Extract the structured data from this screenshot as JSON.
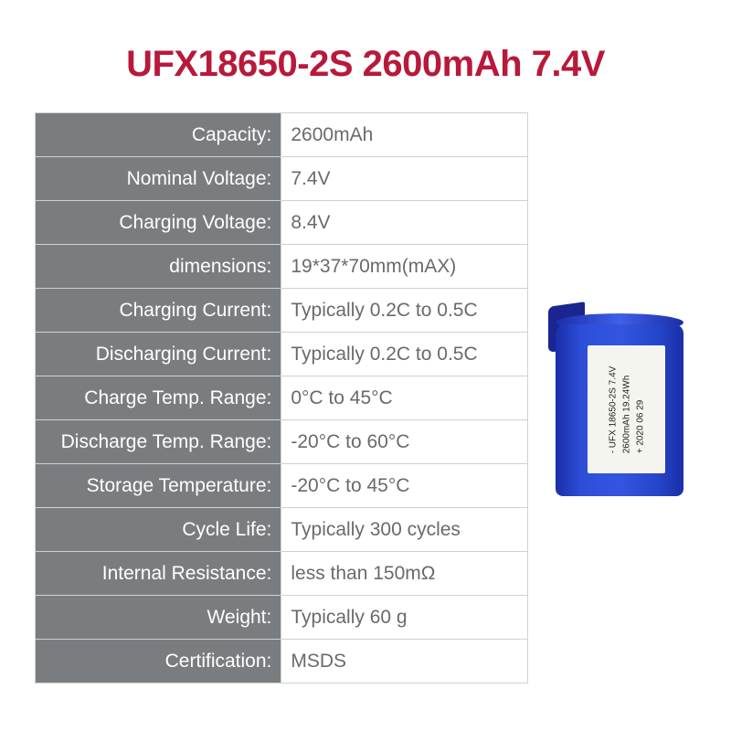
{
  "title": {
    "text": "UFX18650-2S 2600mAh 7.4V",
    "color": "#b8193a"
  },
  "table": {
    "label_bg": "#7a7d80",
    "label_color": "#ffffff",
    "value_color": "#6a6a6a",
    "border_color": "#d0d0d0",
    "rows": [
      {
        "label": "Capacity:",
        "value": "2600mAh"
      },
      {
        "label": "Nominal Voltage:",
        "value": "7.4V"
      },
      {
        "label": "Charging Voltage:",
        "value": "8.4V"
      },
      {
        "label": "dimensions:",
        "value": "19*37*70mm(mAX)"
      },
      {
        "label": "Charging Current:",
        "value": "Typically 0.2C to 0.5C"
      },
      {
        "label": "Discharging Current:",
        "value": "Typically 0.2C to 0.5C"
      },
      {
        "label": "Charge Temp. Range:",
        "value": "0°C to 45°C"
      },
      {
        "label": "Discharge Temp. Range:",
        "value": "-20°C to 60°C"
      },
      {
        "label": "Storage Temperature:",
        "value": "-20°C to 45°C"
      },
      {
        "label": "Cycle Life:",
        "value": "Typically 300 cycles"
      },
      {
        "label": "Internal Resistance:",
        "value": "less than 150mΩ"
      },
      {
        "label": "Weight:",
        "value": "Typically 60 g"
      },
      {
        "label": "Certification:",
        "value": "MSDS"
      }
    ]
  },
  "battery": {
    "body_color": "#2d4ed8",
    "label_bg": "#f5f5f0",
    "label_line1": "- UFX 18650-2S 7.4V",
    "label_line2": "2600mAh 19.24Wh",
    "label_line3": "+ 2020 06 29"
  }
}
